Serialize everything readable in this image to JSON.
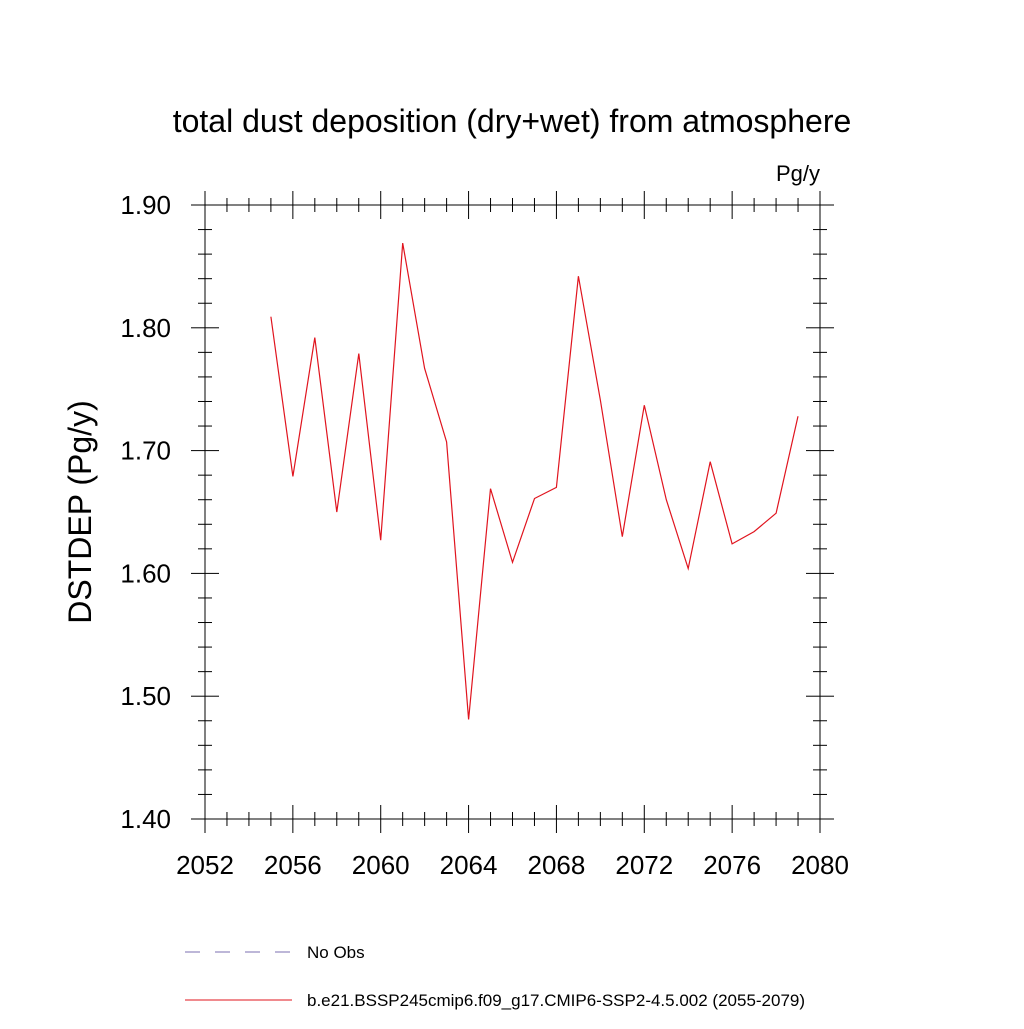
{
  "chart_data": {
    "type": "line",
    "title": "total dust deposition (dry+wet) from atmosphere",
    "units_label": "Pg/y",
    "ylabel": "DSTDEP  (Pg/y)",
    "xlabel": "",
    "xlim": [
      2052,
      2080
    ],
    "ylim": [
      1.4,
      1.9
    ],
    "x_ticks": [
      2052,
      2056,
      2060,
      2064,
      2068,
      2072,
      2076,
      2080
    ],
    "x_tick_labels": [
      "2052",
      "2056",
      "2060",
      "2064",
      "2068",
      "2072",
      "2076",
      "2080"
    ],
    "y_ticks": [
      1.4,
      1.5,
      1.6,
      1.7,
      1.8,
      1.9
    ],
    "y_tick_labels": [
      "1.40",
      "1.50",
      "1.60",
      "1.70",
      "1.80",
      "1.90"
    ],
    "grid": false,
    "legend_position": "bottom",
    "series": [
      {
        "name": "No Obs",
        "color": "#7b6fb0",
        "dash": "dashed",
        "x": [],
        "y": []
      },
      {
        "name": "b.e21.BSSP245cmip6.f09_g17.CMIP6-SSP2-4.5.002 (2055-2079)",
        "color": "#e0141e",
        "dash": "solid",
        "x": [
          2055,
          2056,
          2057,
          2058,
          2059,
          2060,
          2061,
          2062,
          2063,
          2064,
          2065,
          2066,
          2067,
          2068,
          2069,
          2070,
          2071,
          2072,
          2073,
          2074,
          2075,
          2076,
          2077,
          2078,
          2079
        ],
        "y": [
          1.809,
          1.679,
          1.792,
          1.65,
          1.779,
          1.627,
          1.869,
          1.767,
          1.707,
          1.481,
          1.669,
          1.609,
          1.661,
          1.67,
          1.842,
          1.741,
          1.63,
          1.737,
          1.66,
          1.604,
          1.691,
          1.624,
          1.634,
          1.649,
          1.728
        ]
      }
    ]
  }
}
